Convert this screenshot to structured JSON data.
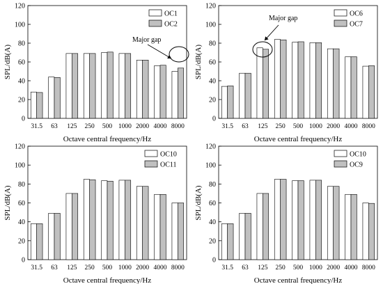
{
  "chart_data": [
    {
      "type": "bar",
      "title": "",
      "xlabel": "Octave central frequency/Hz",
      "ylabel": "SPL/dB(A)",
      "ylim": [
        0,
        120
      ],
      "yticks": [
        0,
        20,
        40,
        60,
        80,
        100,
        120
      ],
      "categories": [
        "31.5",
        "63",
        "125",
        "250",
        "500",
        "1000",
        "2000",
        "4000",
        "8000"
      ],
      "legend": "top-right",
      "series": [
        {
          "name": "OC1",
          "color": "#ffffff",
          "values": [
            28,
            44,
            69,
            69,
            70,
            69,
            62,
            56,
            50
          ]
        },
        {
          "name": "OC2",
          "color": "#c0c0c0",
          "values": [
            27.5,
            43.5,
            69,
            69,
            70.5,
            69,
            62,
            56.5,
            53.5
          ]
        }
      ],
      "annotation": {
        "text": "Major gap",
        "category": "8000"
      }
    },
    {
      "type": "bar",
      "title": "",
      "xlabel": "Octave central frequency/Hz",
      "ylabel": "SPL/dB(A)",
      "ylim": [
        0,
        120
      ],
      "yticks": [
        0,
        20,
        40,
        60,
        80,
        100,
        120
      ],
      "categories": [
        "31.5",
        "63",
        "125",
        "250",
        "500",
        "1000",
        "2000",
        "4000",
        "8000"
      ],
      "legend": "top-right",
      "series": [
        {
          "name": "OC6",
          "color": "#ffffff",
          "values": [
            34,
            48,
            75,
            84,
            81,
            80.5,
            74,
            65.5,
            55.5
          ]
        },
        {
          "name": "OC7",
          "color": "#c0c0c0",
          "values": [
            34.5,
            48,
            73.5,
            83.5,
            81.5,
            80.5,
            74,
            65.5,
            56
          ]
        }
      ],
      "annotation": {
        "text": "Major gap",
        "category": "125"
      }
    },
    {
      "type": "bar",
      "title": "",
      "xlabel": "Octave central frequency/Hz",
      "ylabel": "SPL/dB(A)",
      "ylim": [
        0,
        120
      ],
      "yticks": [
        0,
        20,
        40,
        60,
        80,
        100,
        120
      ],
      "categories": [
        "31.5",
        "63",
        "125",
        "250",
        "500",
        "1000",
        "2000",
        "4000",
        "8000"
      ],
      "legend": "top-right",
      "series": [
        {
          "name": "OC10",
          "color": "#ffffff",
          "values": [
            38,
            49,
            70,
            85,
            83.5,
            84,
            77.5,
            69,
            60
          ]
        },
        {
          "name": "OC11",
          "color": "#c0c0c0",
          "values": [
            38,
            49,
            70,
            84.5,
            83,
            84,
            77.5,
            69,
            60
          ]
        }
      ]
    },
    {
      "type": "bar",
      "title": "",
      "xlabel": "Octave central frequency/Hz",
      "ylabel": "SPL/dB(A)",
      "ylim": [
        0,
        120
      ],
      "yticks": [
        0,
        20,
        40,
        60,
        80,
        100,
        120
      ],
      "categories": [
        "31.5",
        "63",
        "125",
        "250",
        "500",
        "1000",
        "2000",
        "4000",
        "8000"
      ],
      "legend": "top-right",
      "series": [
        {
          "name": "OC10",
          "color": "#ffffff",
          "values": [
            38,
            49,
            70,
            85,
            83.5,
            84,
            77.5,
            69,
            60
          ]
        },
        {
          "name": "OC9",
          "color": "#c0c0c0",
          "values": [
            38,
            49,
            70,
            85,
            83.5,
            84,
            77.5,
            69,
            59.5
          ]
        }
      ]
    }
  ]
}
